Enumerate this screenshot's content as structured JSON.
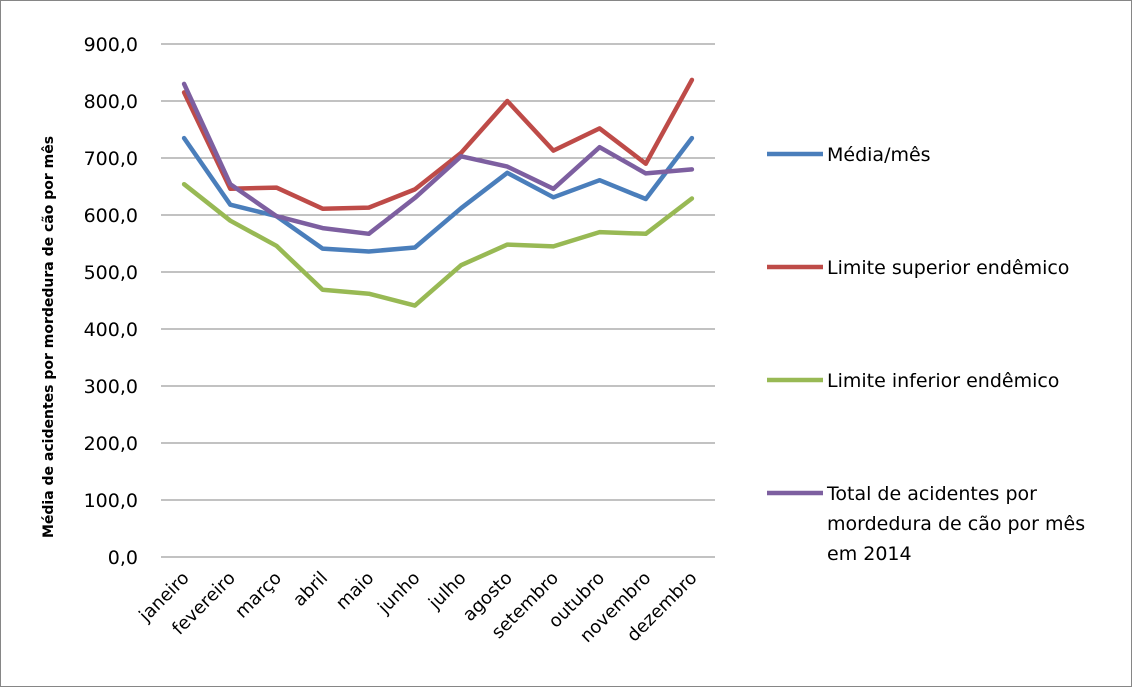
{
  "chart_data": {
    "type": "line",
    "title": "",
    "xlabel": "",
    "ylabel": "Média de acidentes por mordedura de cão por mês",
    "ylim": [
      0,
      900
    ],
    "y_tick_step": 100,
    "y_tick_labels": [
      "0,0",
      "100,0",
      "200,0",
      "300,0",
      "400,0",
      "500,0",
      "600,0",
      "700,0",
      "800,0",
      "900,0"
    ],
    "grid": true,
    "legend_position": "right",
    "categories": [
      "janeiro",
      "fevereiro",
      "março",
      "abril",
      "maio",
      "junho",
      "julho",
      "agosto",
      "setembro",
      "outubro",
      "novembro",
      "dezembro"
    ],
    "series": [
      {
        "name": "Média/mês",
        "color": "#4a7ebb",
        "values": [
          735,
          618,
          598,
          541,
          536,
          543,
          612,
          674,
          631,
          661,
          628,
          735
        ]
      },
      {
        "name": "Limite superior endêmico",
        "color": "#be4b48",
        "values": [
          815,
          646,
          648,
          611,
          613,
          645,
          709,
          800,
          713,
          752,
          690,
          837
        ]
      },
      {
        "name": "Limite inferior endêmico",
        "color": "#98b954",
        "values": [
          654,
          590,
          546,
          469,
          462,
          441,
          512,
          548,
          545,
          570,
          567,
          629
        ]
      },
      {
        "name": "Total de acidentes por mordedura de cão por mês em 2014",
        "legend_lines": [
          "Total de acidentes por",
          "mordedura de cão por mês",
          "em 2014"
        ],
        "color": "#7d5fa0",
        "values": [
          830,
          654,
          598,
          577,
          567,
          630,
          703,
          685,
          646,
          719,
          673,
          680
        ]
      }
    ]
  }
}
